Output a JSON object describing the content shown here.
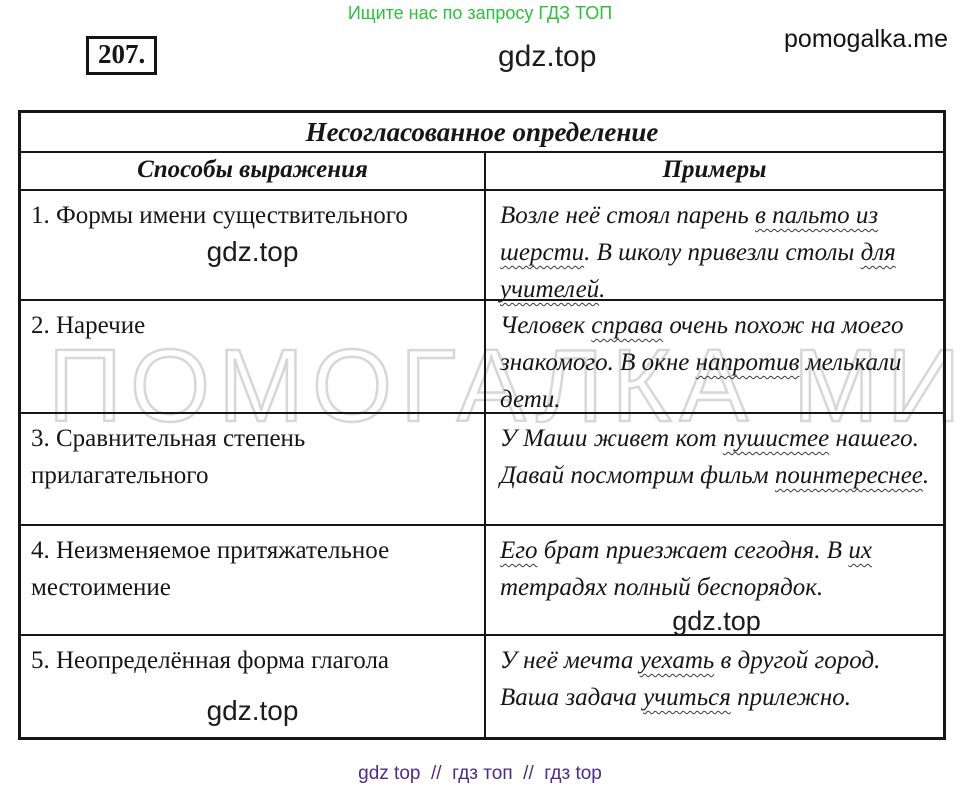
{
  "header": {
    "promo_text": "Ищите нас по запросу ГДЗ ТОП",
    "promo_color": "#2bc13c",
    "task_number": "207.",
    "site_watermark": "gdz.top",
    "brand": "pomogalka.me"
  },
  "table": {
    "title": "Несогласованное определение",
    "columns": [
      "Способы выражения",
      "Примеры"
    ],
    "rows": [
      {
        "method": "1. Формы имени существительного",
        "left_watermark": "gdz.top",
        "right_watermark": "",
        "example_segments": [
          {
            "text": "Возле неё стоял парень ",
            "wavy": false
          },
          {
            "text": "в пальто из шерсти",
            "wavy": true
          },
          {
            "text": ". В школу привезли столы ",
            "wavy": false
          },
          {
            "text": "для учителей",
            "wavy": true
          },
          {
            "text": ".",
            "wavy": false
          }
        ]
      },
      {
        "method": "2. Наречие",
        "left_watermark": "",
        "right_watermark": "",
        "example_segments": [
          {
            "text": "Человек ",
            "wavy": false
          },
          {
            "text": "справа",
            "wavy": true
          },
          {
            "text": " очень похож на моего знакомого. В окне ",
            "wavy": false
          },
          {
            "text": "напротив",
            "wavy": true
          },
          {
            "text": " мелькали дети.",
            "wavy": false
          }
        ]
      },
      {
        "method": "3. Сравнительная степень прилагательного",
        "left_watermark": "",
        "right_watermark": "",
        "example_segments": [
          {
            "text": "У Маши живет кот ",
            "wavy": false
          },
          {
            "text": "пушистее",
            "wavy": true
          },
          {
            "text": " нашего. Давай посмотрим фильм ",
            "wavy": false
          },
          {
            "text": "поинтереснее",
            "wavy": true
          },
          {
            "text": ".",
            "wavy": false
          }
        ]
      },
      {
        "method": "4. Неизменяемое притяжательное местоимение",
        "left_watermark": "",
        "right_watermark": "gdz.top",
        "example_segments": [
          {
            "text": "Его",
            "wavy": true
          },
          {
            "text": " брат приезжает сегодня. В ",
            "wavy": false
          },
          {
            "text": "их",
            "wavy": true
          },
          {
            "text": " тетрадях полный беспорядок.",
            "wavy": false
          }
        ]
      },
      {
        "method": "5. Неопределённая форма глагола",
        "left_watermark": "gdz.top",
        "right_watermark": "",
        "example_segments": [
          {
            "text": "У неё мечта ",
            "wavy": false
          },
          {
            "text": "уехать",
            "wavy": true
          },
          {
            "text": " в другой город. Ваша задача ",
            "wavy": false
          },
          {
            "text": "учиться",
            "wavy": true
          },
          {
            "text": " прилежно.",
            "wavy": false
          }
        ]
      }
    ]
  },
  "watermark": {
    "big_outline_text": "ПОМОГАЛКА МИ",
    "outline_color": "#d7d7d7"
  },
  "footer": {
    "text": "gdz top  //  гдз топ  //  гдз top",
    "color": "#4e2b87"
  }
}
